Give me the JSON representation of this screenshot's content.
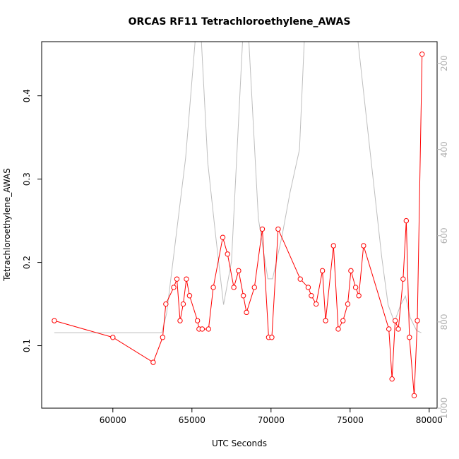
{
  "chart_data": {
    "type": "line",
    "title": "ORCAS RF11 Tetrachloroethylene_AWAS",
    "xlabel": "UTC Seconds",
    "ylabel": "Tetrachloroethylene_AWAS",
    "xlim": [
      55500,
      80500
    ],
    "ylim": [
      0.025,
      0.465
    ],
    "x_ticks": [
      60000,
      65000,
      70000,
      75000,
      80000
    ],
    "y_ticks": [
      0.1,
      0.2,
      0.3,
      0.4
    ],
    "y2_lim": [
      1000,
      150
    ],
    "y2_ticks": [
      200,
      400,
      600,
      800,
      1000
    ],
    "grid": false,
    "colors": {
      "series": "#ff0000",
      "secondary": "#bebebe",
      "axis": "#000000",
      "axis2": "#b0b0b0"
    },
    "series": [
      {
        "x": [
          56300,
          60000,
          62550,
          63150,
          63350,
          63850,
          64050,
          64250,
          64450,
          64650,
          64850,
          65350,
          65450,
          65650,
          66050,
          66350,
          66950,
          67250,
          67650,
          67950,
          68250,
          68450,
          68950,
          69450,
          69850,
          70050,
          70450,
          71850,
          72350,
          72550,
          72850,
          73250,
          73450,
          73950,
          74250,
          74550,
          74850,
          75050,
          75350,
          75550,
          75850,
          77450,
          77650,
          77850,
          78050,
          78350,
          78550,
          78750,
          79050,
          79250,
          79550
        ],
        "values": [
          0.13,
          0.11,
          0.08,
          0.11,
          0.15,
          0.17,
          0.18,
          0.13,
          0.15,
          0.18,
          0.16,
          0.13,
          0.12,
          0.12,
          0.12,
          0.17,
          0.23,
          0.21,
          0.17,
          0.19,
          0.16,
          0.14,
          0.17,
          0.24,
          0.11,
          0.11,
          0.24,
          0.18,
          0.17,
          0.16,
          0.15,
          0.19,
          0.13,
          0.22,
          0.12,
          0.13,
          0.15,
          0.19,
          0.17,
          0.16,
          0.22,
          0.12,
          0.06,
          0.13,
          0.12,
          0.18,
          0.25,
          0.11,
          0.04,
          0.13,
          0.45
        ]
      },
      {
        "x": [
          56300,
          63100,
          63400,
          64000,
          64600,
          65200,
          65600,
          66000,
          66500,
          67000,
          67500,
          68200,
          68600,
          69200,
          69800,
          70100,
          70700,
          71200,
          71800,
          72100,
          72500,
          73300,
          73400,
          74300,
          74400,
          75000,
          75500,
          76400,
          77000,
          77400,
          77800,
          78200,
          78500,
          78800,
          79200,
          79500
        ],
        "values": [
          825,
          825,
          780,
          600,
          420,
          150,
          150,
          430,
          600,
          760,
          660,
          150,
          150,
          560,
          700,
          700,
          600,
          500,
          400,
          150,
          150,
          150,
          150,
          150,
          150,
          150,
          150,
          450,
          650,
          760,
          800,
          760,
          740,
          790,
          820,
          825
        ]
      }
    ]
  }
}
